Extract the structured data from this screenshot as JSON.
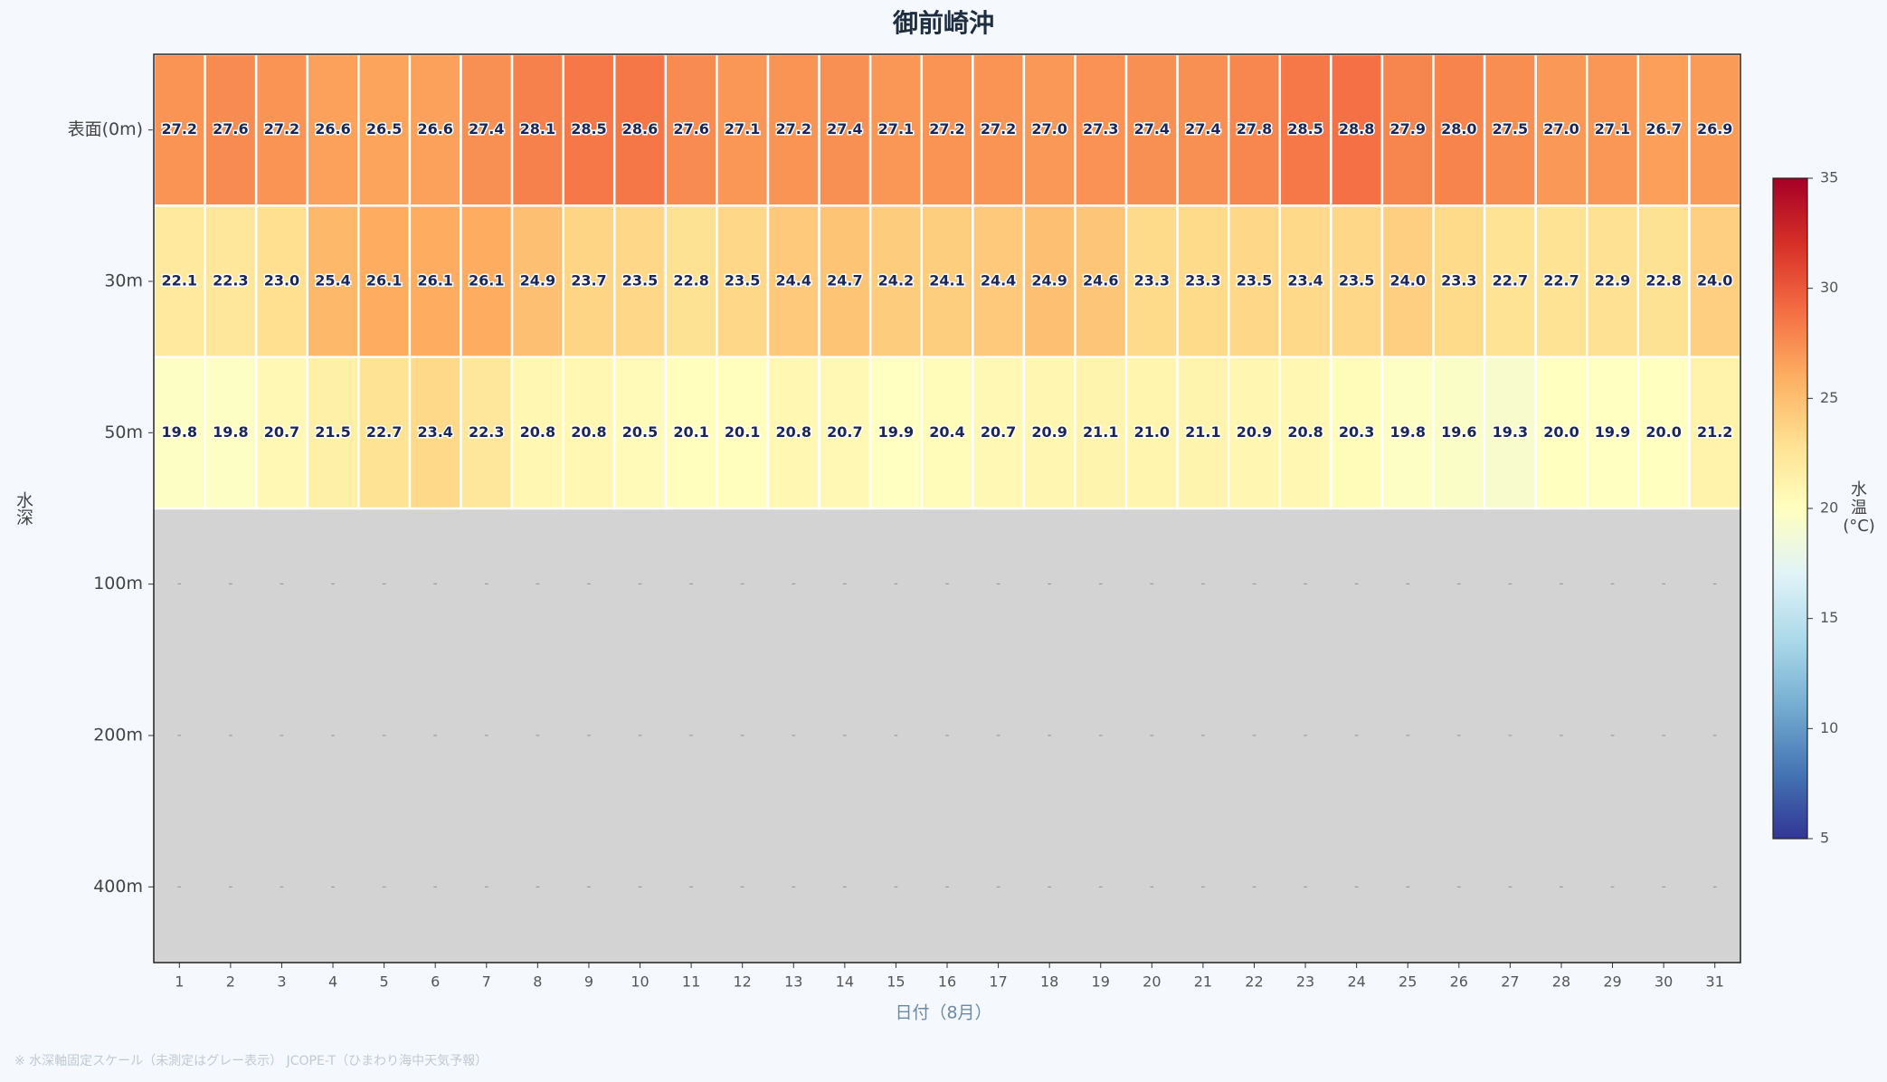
{
  "chart_data": {
    "type": "heatmap",
    "title": "御前崎沖",
    "x_label": "日付（8月）",
    "y_label": "水深",
    "footnote": "※ 水深軸固定スケール（未測定はグレー表示） JCOPE-T（ひまわり海中天気予報）",
    "missing_label": "-",
    "missing_color": "#d3d3d3",
    "categories": [
      1,
      2,
      3,
      4,
      5,
      6,
      7,
      8,
      9,
      10,
      11,
      12,
      13,
      14,
      15,
      16,
      17,
      18,
      19,
      20,
      21,
      22,
      23,
      24,
      25,
      26,
      27,
      28,
      29,
      30,
      31
    ],
    "series": [
      {
        "name": "表面(0m)",
        "values": [
          27.2,
          27.6,
          27.2,
          26.6,
          26.5,
          26.6,
          27.4,
          28.1,
          28.5,
          28.6,
          27.6,
          27.1,
          27.2,
          27.4,
          27.1,
          27.2,
          27.2,
          27.0,
          27.3,
          27.4,
          27.4,
          27.8,
          28.5,
          28.8,
          27.9,
          28.0,
          27.5,
          27.0,
          27.1,
          26.7,
          26.9
        ],
        "value_labels": [
          "27.2",
          "27.6",
          "27.2",
          "26.6",
          "26.5",
          "26.6",
          "27.4",
          "28.1",
          "28.5",
          "28.6",
          "27.6",
          "27.1",
          "27.2",
          "27.4",
          "27.1",
          "27.2",
          "27.2",
          "27.0",
          "27.3",
          "27.4",
          "27.4",
          "27.8",
          "28.5",
          "28.8",
          "27.9",
          "28.0",
          "27.5",
          "27.0",
          "27.1",
          "26.7",
          "26.9"
        ]
      },
      {
        "name": "30m",
        "values": [
          22.1,
          22.3,
          23.0,
          25.4,
          26.1,
          26.1,
          26.1,
          24.9,
          23.7,
          23.5,
          22.8,
          23.5,
          24.4,
          24.7,
          24.2,
          24.1,
          24.4,
          24.9,
          24.6,
          23.3,
          23.3,
          23.5,
          23.4,
          23.5,
          24.0,
          23.3,
          22.7,
          22.7,
          22.9,
          22.8,
          24.0
        ],
        "value_labels": [
          "22.1",
          "22.3",
          "23.0",
          "25.4",
          "26.1",
          "26.1",
          "26.1",
          "24.9",
          "23.7",
          "23.5",
          "22.8",
          "23.5",
          "24.4",
          "24.7",
          "24.2",
          "24.1",
          "24.4",
          "24.9",
          "24.6",
          "23.3",
          "23.3",
          "23.5",
          "23.4",
          "23.5",
          "24.0",
          "23.3",
          "22.7",
          "22.7",
          "22.9",
          "22.8",
          "24.0"
        ]
      },
      {
        "name": "50m",
        "values": [
          19.8,
          19.8,
          20.7,
          21.5,
          22.7,
          23.4,
          22.3,
          20.8,
          20.8,
          20.5,
          20.1,
          20.1,
          20.8,
          20.7,
          19.9,
          20.4,
          20.7,
          20.9,
          21.1,
          21.0,
          21.1,
          20.9,
          20.8,
          20.3,
          19.8,
          19.6,
          19.3,
          20.0,
          19.9,
          20.0,
          21.2
        ],
        "value_labels": [
          "19.8",
          "19.8",
          "20.7",
          "21.5",
          "22.7",
          "23.4",
          "22.3",
          "20.8",
          "20.8",
          "20.5",
          "20.1",
          "20.1",
          "20.8",
          "20.7",
          "19.9",
          "20.4",
          "20.7",
          "20.9",
          "21.1",
          "21.0",
          "21.1",
          "20.9",
          "20.8",
          "20.3",
          "19.8",
          "19.6",
          "19.3",
          "20.0",
          "19.9",
          "20.0",
          "21.2"
        ]
      },
      {
        "name": "100m",
        "values": [
          null,
          null,
          null,
          null,
          null,
          null,
          null,
          null,
          null,
          null,
          null,
          null,
          null,
          null,
          null,
          null,
          null,
          null,
          null,
          null,
          null,
          null,
          null,
          null,
          null,
          null,
          null,
          null,
          null,
          null,
          null
        ]
      },
      {
        "name": "200m",
        "values": [
          null,
          null,
          null,
          null,
          null,
          null,
          null,
          null,
          null,
          null,
          null,
          null,
          null,
          null,
          null,
          null,
          null,
          null,
          null,
          null,
          null,
          null,
          null,
          null,
          null,
          null,
          null,
          null,
          null,
          null,
          null
        ]
      },
      {
        "name": "400m",
        "values": [
          null,
          null,
          null,
          null,
          null,
          null,
          null,
          null,
          null,
          null,
          null,
          null,
          null,
          null,
          null,
          null,
          null,
          null,
          null,
          null,
          null,
          null,
          null,
          null,
          null,
          null,
          null,
          null,
          null,
          null,
          null
        ]
      }
    ],
    "colorbar": {
      "label": [
        "水",
        "温",
        "(°C)"
      ],
      "clim": [
        5,
        35
      ],
      "ticks": [
        5,
        10,
        15,
        20,
        25,
        30,
        35
      ],
      "colors": [
        "#313695",
        "#4575b4",
        "#74add1",
        "#abd9e9",
        "#e0f3f8",
        "#ffffbf",
        "#fee090",
        "#fdae61",
        "#f46d43",
        "#d73027",
        "#a50026"
      ]
    }
  }
}
